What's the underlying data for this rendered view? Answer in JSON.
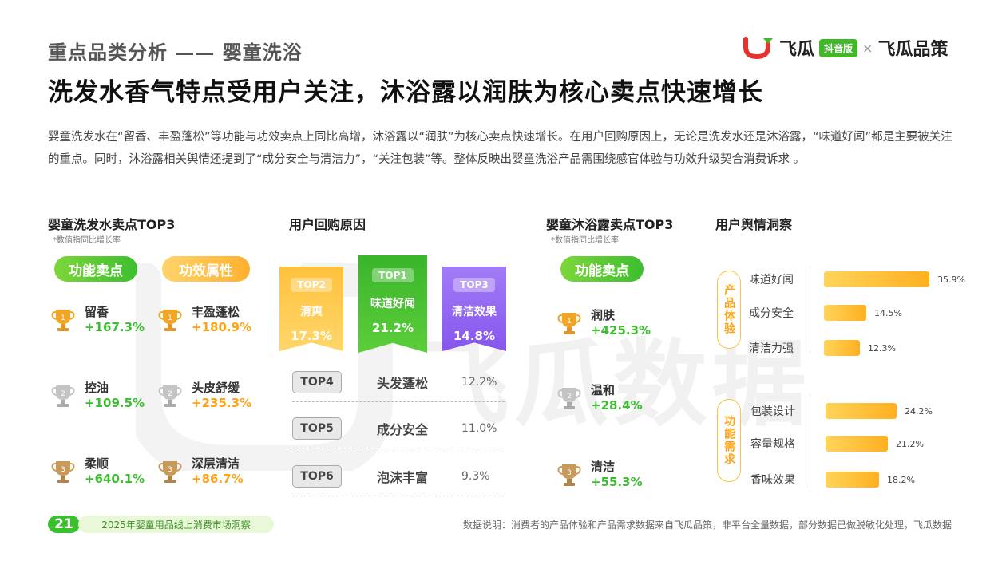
{
  "header": {
    "eyebrow": "重点品类分析 —— 婴童洗浴",
    "headline": "洗发水香气特点受用户关注，沐浴露以润肤为核心卖点快速增长",
    "logo": {
      "brand_left": "飞瓜",
      "pill": "抖音版",
      "separator": "×",
      "brand_right": "飞瓜品策"
    }
  },
  "summary": "婴童洗发水在“留香、丰盈蓬松”等功能与功效卖点上同比高增，沐浴露以“润肤”为核心卖点快速增长。在用户回购原因上，无论是洗发水还是沐浴露，“味道好闻”都是主要被关注的重点。同时，沐浴露相关舆情还提到了“成分安全与清洁力”，“关注包装”等。整体反映出婴童洗浴产品需围绕感官体验与功效升级契合消费诉求 。",
  "shampoo": {
    "title": "婴童洗发水卖点TOP3",
    "note": "*数值指同比增长率",
    "func_tag": "功能卖点",
    "effect_tag": "功效属性",
    "func_items": [
      {
        "name": "留香",
        "value": "+167.3%"
      },
      {
        "name": "控油",
        "value": "+109.5%"
      },
      {
        "name": "柔顺",
        "value": "+640.1%"
      }
    ],
    "effect_items": [
      {
        "name": "丰盈蓬松",
        "value": "+180.9%"
      },
      {
        "name": "头皮舒缓",
        "value": "+235.3%"
      },
      {
        "name": "深层清洁",
        "value": "+86.7%"
      }
    ]
  },
  "repurchase": {
    "title": "用户回购原因",
    "banners": [
      {
        "rank": "TOP2",
        "name": "清爽",
        "value": "17.3%",
        "color": "#ffc23d"
      },
      {
        "rank": "TOP1",
        "name": "味道好闻",
        "value": "21.2%",
        "color": "#3cbf2f"
      },
      {
        "rank": "TOP3",
        "name": "清洁效果",
        "value": "14.8%",
        "color": "#9b6bf5"
      }
    ],
    "rows": [
      {
        "rank": "TOP4",
        "name": "头发蓬松",
        "value": "12.2%"
      },
      {
        "rank": "TOP5",
        "name": "成分安全",
        "value": "11.0%"
      },
      {
        "rank": "TOP6",
        "name": "泡沫丰富",
        "value": "9.3%"
      }
    ]
  },
  "bodywash": {
    "title": "婴童沐浴露卖点TOP3",
    "note": "*数值指同比增长率",
    "func_tag": "功能卖点",
    "items": [
      {
        "name": "润肤",
        "value": "+425.3%"
      },
      {
        "name": "温和",
        "value": "+28.4%"
      },
      {
        "name": "清洁",
        "value": "+55.3%"
      }
    ]
  },
  "sentiment": {
    "title": "用户舆情洞察",
    "groups": [
      {
        "label": "产品体验",
        "items": [
          {
            "name": "味道好闻",
            "value": "35.9%",
            "pct": 35.9
          },
          {
            "name": "成分安全",
            "value": "14.5%",
            "pct": 14.5
          },
          {
            "name": "清洁力强",
            "value": "12.3%",
            "pct": 12.3
          }
        ]
      },
      {
        "label": "功能需求",
        "items": [
          {
            "name": "包装设计",
            "value": "24.2%",
            "pct": 24.2
          },
          {
            "name": "容量规格",
            "value": "21.2%",
            "pct": 21.2
          },
          {
            "name": "香味效果",
            "value": "18.2%",
            "pct": 18.2
          }
        ]
      }
    ]
  },
  "footer": {
    "page_number": "21",
    "report_title": "2025年婴童用品线上消费市场洞察",
    "source_note": "数据说明：消费者的产品体验和产品需求数据来自飞瓜品策，非平台全量数据，部分数据已做脱敏化处理，飞瓜数据"
  },
  "watermark": "飞瓜数据",
  "colors": {
    "green": "#3cbf2f",
    "orange": "#ffa319",
    "purple": "#9b6bf5",
    "gold": "#f0a526",
    "silver": "#b8b8b8",
    "bronze": "#c79a5a"
  },
  "icons": [
    "gold-trophy-icon",
    "silver-trophy-icon",
    "bronze-trophy-icon",
    "logo-icon"
  ]
}
